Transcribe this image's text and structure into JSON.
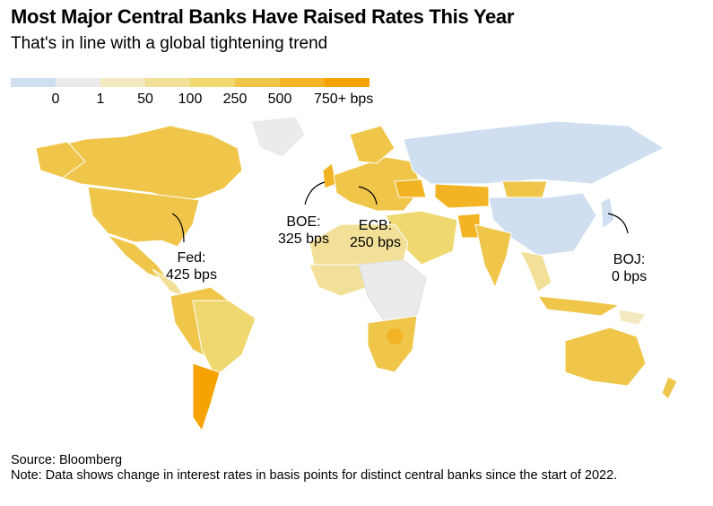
{
  "title": "Most Major Central Banks Have Raised Rates This Year",
  "subtitle": "That's in line with a global tightening trend",
  "legend": {
    "colors": [
      "#cfdff0",
      "#ebebeb",
      "#f4e8c0",
      "#f2e098",
      "#efd870",
      "#efc64a",
      "#f2b424",
      "#f6a200"
    ],
    "labels": [
      "0",
      "1",
      "50",
      "100",
      "250",
      "500",
      "750+ bps"
    ]
  },
  "annotations": [
    {
      "bank": "Fed:",
      "value": "425 bps"
    },
    {
      "bank": "BOE:",
      "value": "325 bps"
    },
    {
      "bank": "ECB:",
      "value": "250 bps"
    },
    {
      "bank": "BOJ:",
      "value": "0 bps"
    }
  ],
  "chart_data": {
    "type": "choropleth",
    "title": "Most Major Central Banks Have Raised Rates This Year",
    "unit": "bps",
    "bins": [
      "0",
      "1-50",
      "50-100",
      "100-250",
      "250-500",
      "500-750",
      "750+"
    ],
    "highlighted": [
      {
        "bank": "Fed",
        "region": "United States",
        "change_bps": 425
      },
      {
        "bank": "BOE",
        "region": "United Kingdom",
        "change_bps": 325
      },
      {
        "bank": "ECB",
        "region": "Euro area",
        "change_bps": 250
      },
      {
        "bank": "BOJ",
        "region": "Japan",
        "change_bps": 0
      }
    ]
  },
  "footer": {
    "source": "Source: Bloomberg",
    "note": "Note: Data shows change in interest rates in basis points for distinct central banks since the start of 2022."
  }
}
